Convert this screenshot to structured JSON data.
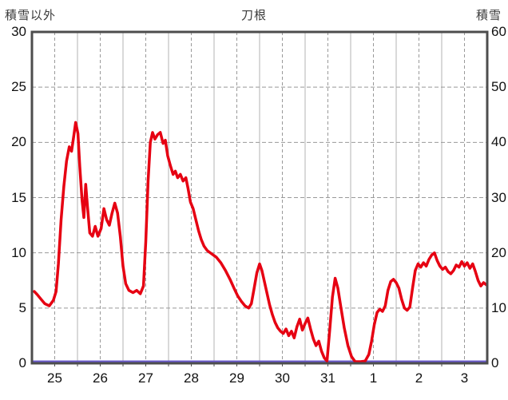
{
  "header": {
    "left_axis_caption": "積雪以外",
    "title": "刀根",
    "right_axis_caption": "積雪"
  },
  "chart_data": {
    "type": "line",
    "title": "刀根",
    "station": "刀根",
    "left_axis": {
      "label": "積雪以外",
      "min": 0,
      "max": 30,
      "ticks": [
        "30",
        "25",
        "20",
        "15",
        "10",
        "5",
        "0"
      ],
      "tick_values": [
        30,
        25,
        20,
        15,
        10,
        5,
        0
      ]
    },
    "right_axis": {
      "label": "積雪",
      "min": 0,
      "max": 60,
      "ticks": [
        "60",
        "50",
        "40",
        "30",
        "20",
        "10",
        "0"
      ],
      "tick_values": [
        60,
        50,
        40,
        30,
        20,
        10,
        0
      ]
    },
    "x_axis": {
      "min": 24.5,
      "max": 34.5,
      "tick_values": [
        25,
        26,
        27,
        28,
        29,
        30,
        31,
        32,
        33,
        34
      ],
      "tick_labels": [
        "25",
        "26",
        "27",
        "28",
        "29",
        "30",
        "31",
        "1",
        "2",
        "3"
      ]
    },
    "grid": {
      "h_dashed_values": [
        5,
        10,
        15,
        20,
        25
      ],
      "v_line_step": 0.5,
      "legend": "off"
    },
    "colors": {
      "line_red": "#e60012",
      "line_purple": "#6a5acd",
      "border": "#4d4d4d",
      "grid_solid": "#b3b3b3",
      "grid_dashed": "#999999"
    },
    "series": [
      {
        "name": "積雪",
        "axis": "right",
        "color": "#6a5acd",
        "width": 3,
        "points": [
          [
            24.5,
            0
          ],
          [
            34.5,
            0
          ]
        ]
      },
      {
        "name": "積雪以外",
        "axis": "left",
        "color": "#e60012",
        "width": 3.5,
        "points": [
          [
            24.55,
            6.5
          ],
          [
            24.62,
            6.2
          ],
          [
            24.7,
            5.8
          ],
          [
            24.78,
            5.4
          ],
          [
            24.88,
            5.2
          ],
          [
            24.97,
            5.7
          ],
          [
            25.03,
            6.5
          ],
          [
            25.08,
            9.0
          ],
          [
            25.14,
            13.0
          ],
          [
            25.2,
            16.0
          ],
          [
            25.26,
            18.3
          ],
          [
            25.32,
            19.6
          ],
          [
            25.37,
            19.2
          ],
          [
            25.42,
            20.6
          ],
          [
            25.46,
            21.8
          ],
          [
            25.51,
            20.8
          ],
          [
            25.55,
            17.8
          ],
          [
            25.6,
            14.8
          ],
          [
            25.64,
            13.2
          ],
          [
            25.68,
            16.2
          ],
          [
            25.72,
            14.2
          ],
          [
            25.77,
            11.8
          ],
          [
            25.83,
            11.5
          ],
          [
            25.89,
            12.4
          ],
          [
            25.95,
            11.5
          ],
          [
            26.02,
            12.2
          ],
          [
            26.08,
            14.0
          ],
          [
            26.14,
            13.0
          ],
          [
            26.2,
            12.5
          ],
          [
            26.26,
            13.6
          ],
          [
            26.32,
            14.5
          ],
          [
            26.38,
            13.6
          ],
          [
            26.44,
            11.5
          ],
          [
            26.5,
            8.8
          ],
          [
            26.56,
            7.2
          ],
          [
            26.63,
            6.6
          ],
          [
            26.72,
            6.4
          ],
          [
            26.8,
            6.6
          ],
          [
            26.88,
            6.3
          ],
          [
            26.95,
            7.0
          ],
          [
            27.0,
            11.0
          ],
          [
            27.05,
            16.5
          ],
          [
            27.1,
            20.0
          ],
          [
            27.15,
            20.9
          ],
          [
            27.2,
            20.3
          ],
          [
            27.26,
            20.7
          ],
          [
            27.32,
            20.9
          ],
          [
            27.38,
            19.9
          ],
          [
            27.43,
            20.2
          ],
          [
            27.48,
            18.8
          ],
          [
            27.54,
            17.9
          ],
          [
            27.6,
            17.1
          ],
          [
            27.65,
            17.4
          ],
          [
            27.7,
            16.8
          ],
          [
            27.76,
            17.1
          ],
          [
            27.82,
            16.5
          ],
          [
            27.88,
            16.8
          ],
          [
            27.93,
            15.8
          ],
          [
            27.98,
            14.6
          ],
          [
            28.04,
            14.0
          ],
          [
            28.1,
            13.0
          ],
          [
            28.16,
            12.0
          ],
          [
            28.22,
            11.2
          ],
          [
            28.28,
            10.6
          ],
          [
            28.35,
            10.2
          ],
          [
            28.45,
            9.9
          ],
          [
            28.55,
            9.6
          ],
          [
            28.65,
            9.1
          ],
          [
            28.75,
            8.4
          ],
          [
            28.85,
            7.6
          ],
          [
            28.95,
            6.7
          ],
          [
            29.02,
            6.1
          ],
          [
            29.1,
            5.6
          ],
          [
            29.18,
            5.2
          ],
          [
            29.26,
            5.0
          ],
          [
            29.32,
            5.4
          ],
          [
            29.38,
            6.8
          ],
          [
            29.44,
            8.2
          ],
          [
            29.5,
            9.0
          ],
          [
            29.55,
            8.4
          ],
          [
            29.6,
            7.5
          ],
          [
            29.66,
            6.4
          ],
          [
            29.72,
            5.3
          ],
          [
            29.78,
            4.4
          ],
          [
            29.84,
            3.7
          ],
          [
            29.9,
            3.2
          ],
          [
            29.96,
            2.9
          ],
          [
            30.02,
            2.7
          ],
          [
            30.08,
            3.1
          ],
          [
            30.14,
            2.5
          ],
          [
            30.2,
            2.9
          ],
          [
            30.26,
            2.3
          ],
          [
            30.32,
            3.3
          ],
          [
            30.38,
            4.0
          ],
          [
            30.44,
            3.0
          ],
          [
            30.5,
            3.6
          ],
          [
            30.56,
            4.1
          ],
          [
            30.62,
            3.1
          ],
          [
            30.68,
            2.2
          ],
          [
            30.74,
            1.6
          ],
          [
            30.8,
            2.0
          ],
          [
            30.86,
            1.1
          ],
          [
            30.92,
            0.5
          ],
          [
            30.98,
            0.2
          ],
          [
            31.04,
            3.0
          ],
          [
            31.1,
            6.0
          ],
          [
            31.16,
            7.7
          ],
          [
            31.22,
            6.8
          ],
          [
            31.28,
            5.2
          ],
          [
            31.36,
            3.2
          ],
          [
            31.44,
            1.6
          ],
          [
            31.52,
            0.6
          ],
          [
            31.6,
            0.1
          ],
          [
            31.72,
            0.0
          ],
          [
            31.82,
            0.2
          ],
          [
            31.9,
            0.8
          ],
          [
            31.96,
            2.0
          ],
          [
            32.02,
            3.5
          ],
          [
            32.08,
            4.6
          ],
          [
            32.14,
            4.9
          ],
          [
            32.2,
            4.7
          ],
          [
            32.26,
            5.2
          ],
          [
            32.32,
            6.6
          ],
          [
            32.38,
            7.4
          ],
          [
            32.44,
            7.6
          ],
          [
            32.5,
            7.3
          ],
          [
            32.56,
            6.8
          ],
          [
            32.62,
            5.8
          ],
          [
            32.68,
            5.0
          ],
          [
            32.74,
            4.8
          ],
          [
            32.8,
            5.1
          ],
          [
            32.86,
            6.8
          ],
          [
            32.92,
            8.4
          ],
          [
            32.98,
            9.0
          ],
          [
            33.04,
            8.7
          ],
          [
            33.1,
            9.1
          ],
          [
            33.16,
            8.8
          ],
          [
            33.22,
            9.4
          ],
          [
            33.28,
            9.8
          ],
          [
            33.34,
            10.0
          ],
          [
            33.4,
            9.3
          ],
          [
            33.46,
            8.8
          ],
          [
            33.52,
            8.5
          ],
          [
            33.58,
            8.7
          ],
          [
            33.64,
            8.3
          ],
          [
            33.7,
            8.1
          ],
          [
            33.76,
            8.4
          ],
          [
            33.82,
            8.9
          ],
          [
            33.88,
            8.7
          ],
          [
            33.94,
            9.2
          ],
          [
            34.0,
            8.8
          ],
          [
            34.06,
            9.1
          ],
          [
            34.12,
            8.6
          ],
          [
            34.18,
            9.0
          ],
          [
            34.24,
            8.3
          ],
          [
            34.3,
            7.5
          ],
          [
            34.36,
            7.0
          ],
          [
            34.42,
            7.3
          ],
          [
            34.48,
            7.1
          ]
        ]
      }
    ]
  }
}
